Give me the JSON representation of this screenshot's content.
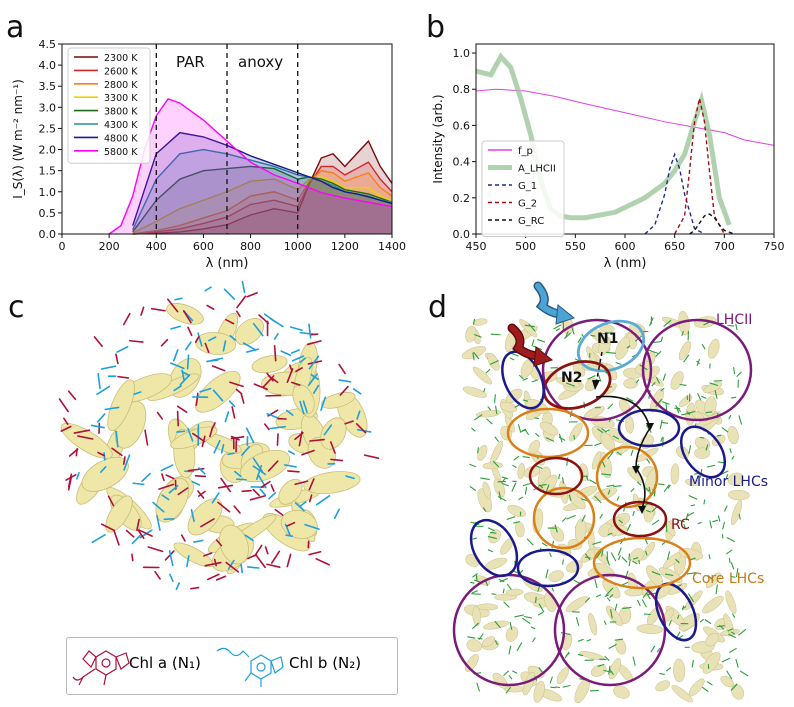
{
  "panels": {
    "a": "a",
    "b": "b",
    "c": "c",
    "d": "d"
  },
  "chart_data": [
    {
      "type": "line",
      "panel": "a",
      "xlabel": "λ (nm)",
      "ylabel": "I_S(λ) (W m⁻² nm⁻¹)",
      "xlim": [
        0,
        1400
      ],
      "ylim": [
        0,
        4.5
      ],
      "xticks": [
        "0",
        "200",
        "400",
        "600",
        "800",
        "1000",
        "1200",
        "1400"
      ],
      "yticks": [
        "0.0",
        "0.5",
        "1.0",
        "1.5",
        "2.0",
        "2.5",
        "3.0",
        "3.5",
        "4.0",
        "4.5"
      ],
      "annotations": [
        "PAR",
        "anoxy"
      ],
      "vlines": [
        400,
        700,
        1000
      ],
      "legend_position": "upper-left",
      "series": [
        {
          "name": "2300 K",
          "color": "#7b0a0a",
          "x": [
            300,
            400,
            500,
            600,
            700,
            800,
            900,
            1000,
            1050,
            1100,
            1150,
            1200,
            1250,
            1300,
            1350,
            1400
          ],
          "y": [
            0.0,
            0.02,
            0.05,
            0.12,
            0.22,
            0.45,
            0.6,
            0.5,
            1.2,
            1.8,
            1.9,
            1.6,
            1.9,
            2.2,
            1.6,
            1.2
          ]
        },
        {
          "name": "2600 K",
          "color": "#d62728",
          "x": [
            300,
            400,
            500,
            600,
            700,
            800,
            900,
            1000,
            1050,
            1100,
            1150,
            1200,
            1250,
            1300,
            1350,
            1400
          ],
          "y": [
            0.0,
            0.05,
            0.12,
            0.25,
            0.4,
            0.7,
            0.8,
            0.65,
            1.2,
            1.6,
            1.6,
            1.4,
            1.55,
            1.7,
            1.3,
            1.0
          ]
        },
        {
          "name": "2800 K",
          "color": "#ff7f0e",
          "x": [
            300,
            400,
            500,
            600,
            700,
            800,
            900,
            1000,
            1050,
            1100,
            1150,
            1200,
            1250,
            1300,
            1350,
            1400
          ],
          "y": [
            0.0,
            0.08,
            0.2,
            0.38,
            0.55,
            0.9,
            1.0,
            0.8,
            1.25,
            1.5,
            1.45,
            1.25,
            1.35,
            1.45,
            1.1,
            0.9
          ]
        },
        {
          "name": "3300 K",
          "color": "#f0d000",
          "x": [
            300,
            400,
            500,
            600,
            700,
            800,
            900,
            1000,
            1050,
            1100,
            1150,
            1200,
            1250,
            1300,
            1350,
            1400
          ],
          "y": [
            0.02,
            0.3,
            0.6,
            0.8,
            1.0,
            1.25,
            1.3,
            1.05,
            1.3,
            1.35,
            1.25,
            1.1,
            1.1,
            1.1,
            0.9,
            0.8
          ]
        },
        {
          "name": "3800 K",
          "color": "#1f6b1f",
          "x": [
            300,
            400,
            500,
            600,
            700,
            800,
            900,
            1000,
            1050,
            1100,
            1150,
            1200,
            1250,
            1300,
            1350,
            1400
          ],
          "y": [
            0.05,
            0.8,
            1.3,
            1.5,
            1.55,
            1.6,
            1.55,
            1.3,
            1.35,
            1.3,
            1.2,
            1.05,
            1.0,
            0.95,
            0.85,
            0.75
          ]
        },
        {
          "name": "4300 K",
          "color": "#1f8fa0",
          "x": [
            300,
            400,
            500,
            600,
            700,
            800,
            900,
            1000,
            1050,
            1100,
            1150,
            1200,
            1250,
            1300,
            1350,
            1400
          ],
          "y": [
            0.1,
            1.3,
            1.9,
            2.0,
            1.9,
            1.75,
            1.6,
            1.4,
            1.35,
            1.25,
            1.15,
            1.0,
            0.95,
            0.9,
            0.8,
            0.75
          ]
        },
        {
          "name": "4800 K",
          "color": "#1a1a8c",
          "x": [
            300,
            400,
            500,
            600,
            700,
            800,
            900,
            1000,
            1050,
            1100,
            1150,
            1200,
            1250,
            1300,
            1350,
            1400
          ],
          "y": [
            0.2,
            1.9,
            2.4,
            2.3,
            2.1,
            1.85,
            1.65,
            1.45,
            1.35,
            1.25,
            1.1,
            1.0,
            0.95,
            0.88,
            0.8,
            0.72
          ]
        },
        {
          "name": "5800 K",
          "color": "#ff00ff",
          "x": [
            200,
            250,
            300,
            350,
            400,
            450,
            500,
            600,
            700,
            800,
            900,
            1000,
            1100,
            1200,
            1300,
            1400
          ],
          "y": [
            0.0,
            0.2,
            0.9,
            2.0,
            2.8,
            3.2,
            3.1,
            2.7,
            2.2,
            1.7,
            1.4,
            1.2,
            0.98,
            0.85,
            0.75,
            0.65
          ]
        }
      ]
    },
    {
      "type": "line",
      "panel": "b",
      "xlabel": "λ (nm)",
      "ylabel": "Intensity (arb.)",
      "xlim": [
        450,
        750
      ],
      "ylim": [
        0,
        1.05
      ],
      "xticks": [
        "450",
        "500",
        "550",
        "600",
        "650",
        "700",
        "750"
      ],
      "yticks": [
        "0.0",
        "0.2",
        "0.4",
        "0.6",
        "0.8",
        "1.0"
      ],
      "legend_position": "lower-left",
      "series": [
        {
          "name": "f_p",
          "color": "#e040e0",
          "style": "solid",
          "x": [
            450,
            470,
            500,
            530,
            560,
            600,
            640,
            680,
            700,
            720,
            750
          ],
          "y": [
            0.79,
            0.8,
            0.79,
            0.76,
            0.72,
            0.67,
            0.62,
            0.58,
            0.56,
            0.52,
            0.49
          ]
        },
        {
          "name": "A_LHCII",
          "color": "#9dc79b",
          "style": "thick",
          "x": [
            450,
            465,
            475,
            485,
            495,
            505,
            515,
            525,
            535,
            545,
            560,
            590,
            620,
            640,
            650,
            660,
            670,
            677,
            685,
            695,
            705
          ],
          "y": [
            0.9,
            0.88,
            0.98,
            0.92,
            0.75,
            0.55,
            0.3,
            0.14,
            0.1,
            0.09,
            0.09,
            0.12,
            0.2,
            0.28,
            0.35,
            0.44,
            0.62,
            0.74,
            0.55,
            0.2,
            0.05
          ]
        },
        {
          "name": "G_1",
          "color": "#1f2a8c",
          "style": "dashed",
          "x": [
            620,
            630,
            640,
            645,
            650,
            655,
            660,
            670,
            680
          ],
          "y": [
            0.0,
            0.05,
            0.22,
            0.36,
            0.44,
            0.36,
            0.22,
            0.03,
            0.0
          ]
        },
        {
          "name": "G_2",
          "color": "#a01010",
          "style": "dashed",
          "x": [
            650,
            660,
            665,
            670,
            675,
            680,
            685,
            690,
            700
          ],
          "y": [
            0.0,
            0.1,
            0.35,
            0.62,
            0.75,
            0.62,
            0.35,
            0.1,
            0.0
          ]
        },
        {
          "name": "G_RC",
          "color": "#111111",
          "style": "dashed",
          "x": [
            665,
            670,
            675,
            680,
            685,
            690,
            695,
            700,
            710
          ],
          "y": [
            0.0,
            0.02,
            0.06,
            0.1,
            0.11,
            0.09,
            0.05,
            0.02,
            0.0
          ]
        }
      ]
    }
  ],
  "panel_c": {
    "legend": {
      "chl_a": "Chl a (N₁)",
      "chl_b": "Chl b (N₂)"
    },
    "colors": {
      "chl_a": "#b0103a",
      "chl_b": "#1ea0dc",
      "protein": "#efe7a8"
    }
  },
  "panel_d": {
    "labels": {
      "lhcii": "LHCII",
      "minor": "Minor LHCs",
      "rc": "RC",
      "core": "Core LHCs",
      "n1": "N1",
      "n2": "N2"
    },
    "colors": {
      "lhcii": "#7a1a7a",
      "minor": "#1a1a8c",
      "rc": "#8b1010",
      "core": "#d98016",
      "n1": "#5aaad8",
      "arrow_blue": "#4ba4d4",
      "arrow_red": "#a01c1c"
    }
  }
}
